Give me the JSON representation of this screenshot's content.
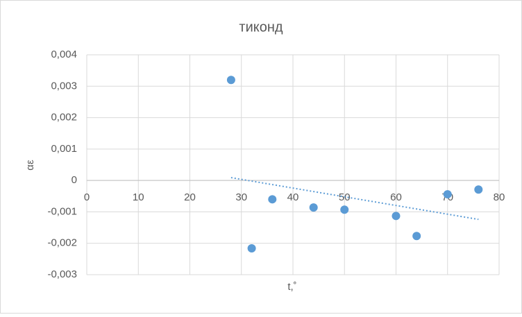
{
  "chart_data": {
    "type": "scatter",
    "title": "тиконд",
    "x_label": "t,˚",
    "y_label": "αε",
    "series": [
      {
        "color": "#5b9bd5",
        "x": [
          28,
          32,
          36,
          44,
          50,
          60,
          64,
          70,
          76
        ],
        "values": [
          0.0032,
          -0.00216,
          -0.0006,
          -0.00086,
          -0.00093,
          -0.00113,
          -0.00177,
          -0.00044,
          -0.00029
        ]
      }
    ],
    "trendline": {
      "color": "#5b9bd5",
      "x": [
        28,
        76
      ],
      "values": [
        9e-05,
        -0.00124
      ]
    },
    "xlim": [
      0,
      80
    ],
    "xticks": [
      0,
      10,
      20,
      30,
      40,
      50,
      60,
      70,
      80
    ],
    "ylim": [
      -0.003,
      0.004
    ],
    "yticks": [
      {
        "value": -0.003,
        "label": "-0,003"
      },
      {
        "value": -0.002,
        "label": "-0,002"
      },
      {
        "value": -0.001,
        "label": "-0,001"
      },
      0,
      {
        "value": 0.001,
        "label": "0,001"
      },
      {
        "value": 0.002,
        "label": "0,002"
      },
      {
        "value": 0.003,
        "label": "0,003"
      },
      {
        "value": 0.004,
        "label": "0,004"
      }
    ],
    "grid": true
  }
}
